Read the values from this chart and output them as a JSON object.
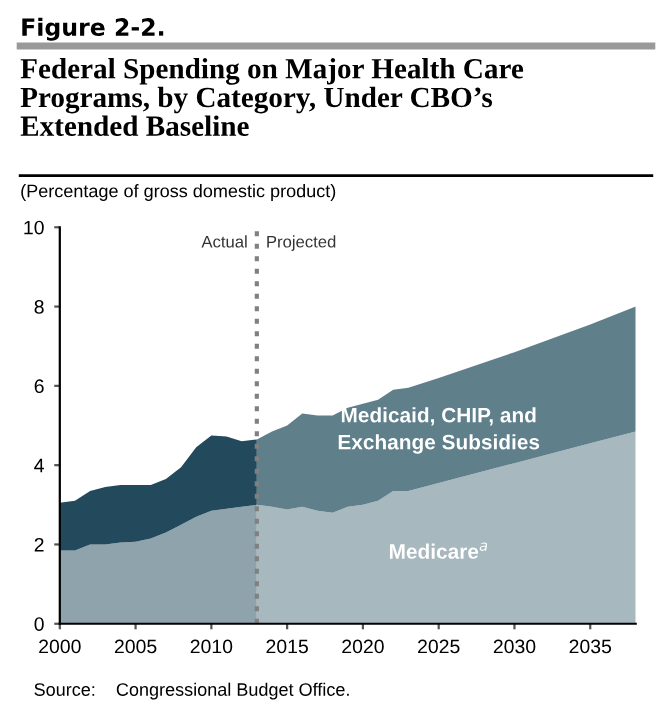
{
  "chart_data": {
    "type": "area",
    "stacked": true,
    "title": "Federal Spending on Major Health Care\nPrograms, by Category, Under CBO’s\nExtended Baseline",
    "subtitle": "(Percentage of gross domestic product)",
    "annotations": [
      "Figure 2-2.",
      "Source:    Congressional Budget Office.",
      {
        "text": "Actual",
        "x": 2013,
        "y": 9.6
      },
      {
        "text": "Projected",
        "x": 2013,
        "y": 9.6
      }
    ],
    "x": [
      2000,
      2001,
      2002,
      2003,
      2004,
      2005,
      2006,
      2007,
      2008,
      2009,
      2010,
      2011,
      2012,
      2013,
      2013,
      2014,
      2015,
      2016,
      2017,
      2018,
      2019,
      2020,
      2021,
      2022,
      2023,
      2025,
      2030,
      2035,
      2038
    ],
    "series": [
      {
        "color": "#8ea3ab",
        "values": [
          1.85,
          1.85,
          2.0,
          2.0,
          2.05,
          2.07,
          2.15,
          2.3,
          2.5,
          2.7,
          2.85,
          2.9,
          2.95,
          3.0,
          null,
          null,
          null,
          null,
          null,
          null,
          null,
          null,
          null,
          null,
          null,
          null,
          null,
          null,
          null
        ]
      },
      {
        "name": "Medicare$^{a}$",
        "color": "#a8b8bf",
        "values": [
          null,
          null,
          null,
          null,
          null,
          null,
          null,
          null,
          null,
          null,
          null,
          null,
          null,
          null,
          3.0,
          2.95,
          2.88,
          2.95,
          2.85,
          2.8,
          2.95,
          3.0,
          3.1,
          3.35,
          3.35,
          3.55,
          4.05,
          4.55,
          4.85
        ]
      },
      {
        "color": "#23495c",
        "values": [
          1.2,
          1.25,
          1.35,
          1.45,
          1.45,
          1.43,
          1.35,
          1.35,
          1.45,
          1.75,
          1.9,
          1.82,
          1.65,
          1.65,
          null,
          null,
          null,
          null,
          null,
          null,
          null,
          null,
          null,
          null,
          null,
          null,
          null,
          null,
          null
        ]
      },
      {
        "name": "Medicaid, CHIP, and\nExchange Subsidies",
        "color": "#5f7f8b",
        "values": [
          null,
          null,
          null,
          null,
          null,
          null,
          null,
          null,
          null,
          null,
          null,
          null,
          null,
          null,
          1.65,
          1.9,
          2.12,
          2.35,
          2.4,
          2.45,
          2.5,
          2.55,
          2.55,
          2.55,
          2.6,
          2.65,
          2.8,
          3.0,
          3.15
        ]
      }
    ],
    "ref_lines": [
      {
        "axis": "x",
        "value": 2013,
        "color": "#808080",
        "line_style": "dotted"
      }
    ],
    "xlim": [
      2000,
      2038
    ],
    "xticks": [
      2000,
      2005,
      2010,
      2015,
      2020,
      2025,
      2030,
      2035
    ],
    "ylim": [
      0,
      10
    ],
    "yticks": [
      0,
      2,
      4,
      6,
      8,
      10
    ],
    "grid": false,
    "legend": false
  }
}
